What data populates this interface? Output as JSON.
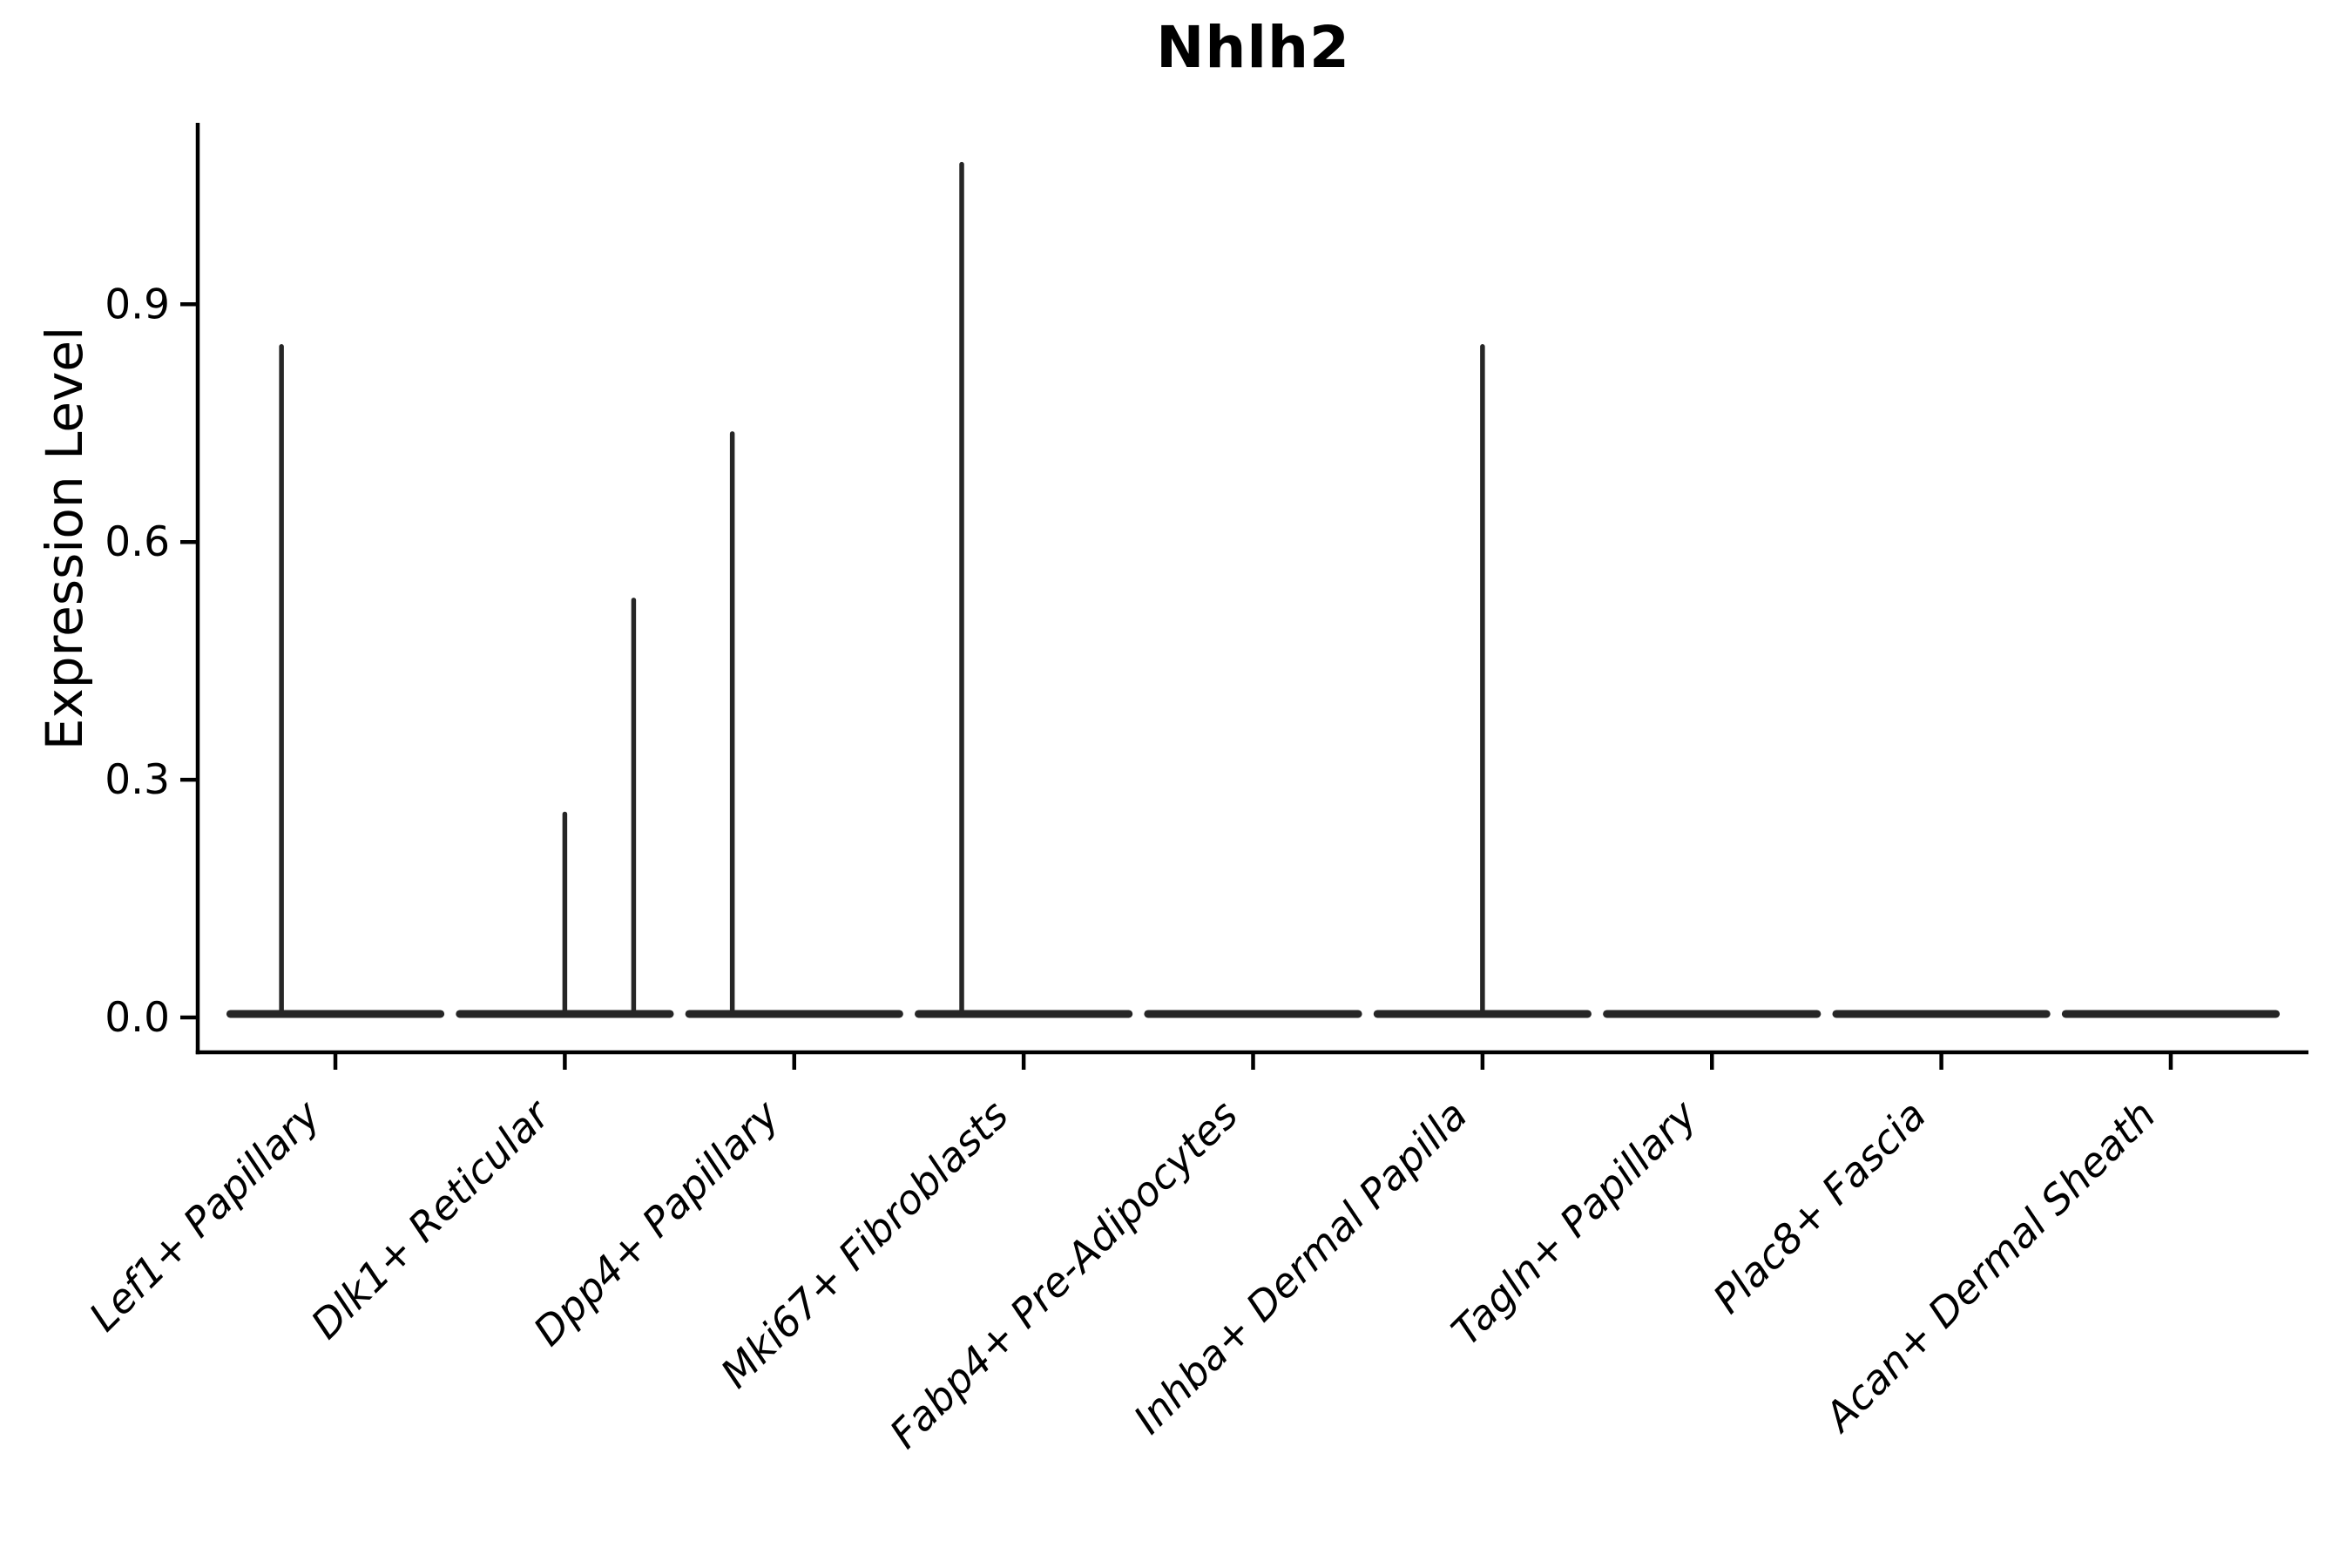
{
  "figure": {
    "title": "Nhlh2",
    "y_axis": {
      "label": "Expression Level"
    }
  },
  "chart_data": {
    "type": "violin",
    "title": "Nhlh2",
    "xlabel": "",
    "ylabel": "Expression Level",
    "ylim": [
      -0.044,
      1.129
    ],
    "yticks": [
      {
        "value": 0.0,
        "label": "0.0"
      },
      {
        "value": 0.3,
        "label": "0.3"
      },
      {
        "value": 0.6,
        "label": "0.6"
      },
      {
        "value": 0.9,
        "label": "0.9"
      }
    ],
    "grid": false,
    "legend_position": "none",
    "categories": [
      "Lef1+ Papillary",
      "Dlk1+ Reticular",
      "Dpp4+ Papillary",
      "Mki67+ Fibroblasts",
      "Fabp4+ Pre-Adipocytes",
      "Inhba+ Dermal Papilla",
      "Tagln+ Papillary",
      "Plac8+ Fascia",
      "Acan+ Dermal Sheath"
    ],
    "series": [
      {
        "name": "Lef1+ Papillary",
        "baseline_value": 0.0,
        "spikes": [
          {
            "offset": -0.235,
            "max_expression": 0.85
          }
        ]
      },
      {
        "name": "Dlk1+ Reticular",
        "baseline_value": 0.0,
        "spikes": [
          {
            "offset": 0.0,
            "max_expression": 0.26
          },
          {
            "offset": 0.3,
            "max_expression": 0.53
          }
        ]
      },
      {
        "name": "Dpp4+ Papillary",
        "baseline_value": 0.0,
        "spikes": [
          {
            "offset": -0.27,
            "max_expression": 0.74
          }
        ]
      },
      {
        "name": "Mki67+ Fibroblasts",
        "baseline_value": 0.0,
        "spikes": [
          {
            "offset": -0.27,
            "max_expression": 1.08
          }
        ]
      },
      {
        "name": "Fabp4+ Pre-Adipocytes",
        "baseline_value": 0.0,
        "spikes": []
      },
      {
        "name": "Inhba+ Dermal Papilla",
        "baseline_value": 0.0,
        "spikes": [
          {
            "offset": 0.0,
            "max_expression": 0.85
          }
        ]
      },
      {
        "name": "Tagln+ Papillary",
        "baseline_value": 0.0,
        "spikes": []
      },
      {
        "name": "Plac8+ Fascia",
        "baseline_value": 0.0,
        "spikes": []
      },
      {
        "name": "Acan+ Dermal Sheath",
        "baseline_value": 0.0,
        "spikes": []
      }
    ],
    "colors": {
      "violin_stroke": "#262626",
      "axis": "#000000",
      "text": "#000000",
      "background": "#ffffff"
    }
  }
}
